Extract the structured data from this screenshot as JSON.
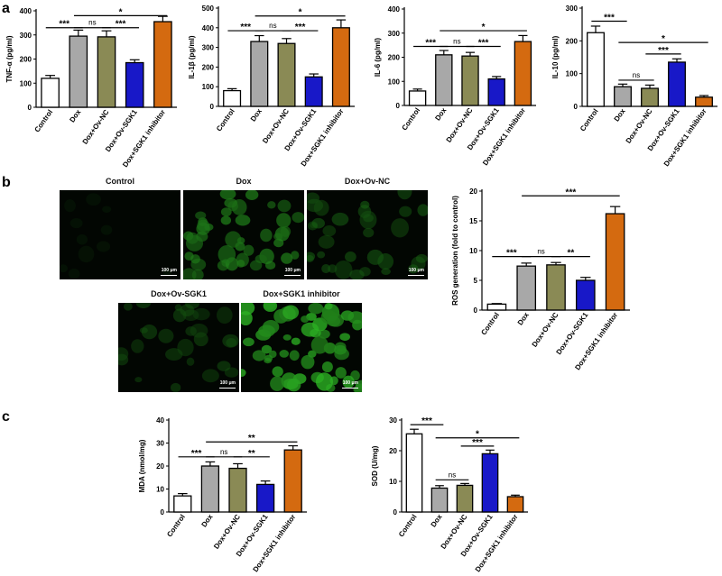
{
  "panels": {
    "a": "a",
    "b": "b",
    "c": "c"
  },
  "colors": {
    "Control": "#ffffff",
    "Dox": "#a8a8a8",
    "Dox+Ov-NC": "#8a8a55",
    "Dox+Ov-SGK1": "#1818c8",
    "Dox+SGK1 inhibitor": "#d46a10"
  },
  "micrographs": {
    "images": [
      {
        "title": "Control",
        "brightness": 0.04
      },
      {
        "title": "Dox",
        "brightness": 0.55
      },
      {
        "title": "Dox+Ov-NC",
        "brightness": 0.35
      },
      {
        "title": "Dox+Ov-SGK1",
        "brightness": 0.28
      },
      {
        "title": "Dox+SGK1 inhibitor",
        "brightness": 0.75
      }
    ],
    "scalebar_label": "100 μm"
  },
  "chart_data": [
    {
      "id": "tnf",
      "type": "bar",
      "title": "",
      "ylabel": "TNF-α (pg/ml)",
      "categories": [
        "Control",
        "Dox",
        "Dox+Ov-NC",
        "Dox+Ov-SGK1",
        "Dox+SGK1 inhibitor"
      ],
      "values": [
        120,
        295,
        292,
        185,
        355
      ],
      "errors": [
        12,
        25,
        25,
        12,
        22
      ],
      "ylim": [
        0,
        400
      ],
      "yticks": [
        0,
        100,
        200,
        300,
        400
      ],
      "annotations": [
        {
          "from": 0,
          "to": 1,
          "y": 330,
          "text": "***"
        },
        {
          "from": 1,
          "to": 2,
          "y": 330,
          "text": "ns"
        },
        {
          "from": 2,
          "to": 3,
          "y": 330,
          "text": "***"
        },
        {
          "from": 1,
          "to": 4,
          "y": 380,
          "text": "*"
        }
      ]
    },
    {
      "id": "il1b",
      "type": "bar",
      "title": "",
      "ylabel": "IL-1β (pg/ml)",
      "categories": [
        "Control",
        "Dox",
        "Dox+Ov-NC",
        "Dox+Ov-SGK1",
        "Dox+SGK1 inhibitor"
      ],
      "values": [
        80,
        330,
        320,
        150,
        400
      ],
      "errors": [
        10,
        30,
        25,
        15,
        40
      ],
      "ylim": [
        0,
        500
      ],
      "yticks": [
        0,
        100,
        200,
        300,
        400,
        500
      ],
      "annotations": [
        {
          "from": 0,
          "to": 1,
          "y": 385,
          "text": "***"
        },
        {
          "from": 1,
          "to": 2,
          "y": 385,
          "text": "ns"
        },
        {
          "from": 2,
          "to": 3,
          "y": 385,
          "text": "***"
        },
        {
          "from": 1,
          "to": 4,
          "y": 460,
          "text": "*"
        }
      ]
    },
    {
      "id": "il6",
      "type": "bar",
      "title": "",
      "ylabel": "IL-6 (pg/ml)",
      "categories": [
        "Control",
        "Dox",
        "Dox+Ov-NC",
        "Dox+Ov-SGK1",
        "Dox+SGK1 inhibitor"
      ],
      "values": [
        60,
        210,
        205,
        110,
        265
      ],
      "errors": [
        8,
        18,
        15,
        10,
        25
      ],
      "ylim": [
        0,
        400
      ],
      "yticks": [
        0,
        100,
        200,
        300,
        400
      ],
      "annotations": [
        {
          "from": 0,
          "to": 1,
          "y": 245,
          "text": "***"
        },
        {
          "from": 1,
          "to": 2,
          "y": 245,
          "text": "ns"
        },
        {
          "from": 2,
          "to": 3,
          "y": 245,
          "text": "***"
        },
        {
          "from": 1,
          "to": 4,
          "y": 310,
          "text": "*"
        }
      ]
    },
    {
      "id": "il10",
      "type": "bar",
      "title": "",
      "ylabel": "IL-10 (pg/ml)",
      "categories": [
        "Control",
        "Dox",
        "Dox+Ov-NC",
        "Dox+Ov-SGK1",
        "Dox+SGK1 inhibitor"
      ],
      "values": [
        225,
        60,
        55,
        135,
        28
      ],
      "errors": [
        20,
        8,
        10,
        10,
        5
      ],
      "ylim": [
        0,
        300
      ],
      "yticks": [
        0,
        100,
        200,
        300
      ],
      "annotations": [
        {
          "from": 0,
          "to": 1,
          "y": 260,
          "text": "***"
        },
        {
          "from": 1,
          "to": 2,
          "y": 80,
          "text": "ns"
        },
        {
          "from": 2,
          "to": 3,
          "y": 160,
          "text": "***"
        },
        {
          "from": 1,
          "to": 4,
          "y": 195,
          "text": "*"
        }
      ]
    },
    {
      "id": "ros",
      "type": "bar",
      "title": "",
      "ylabel": "ROS generation (fold to control)",
      "categories": [
        "Control",
        "Dox",
        "Dox+Ov-NC",
        "Dox+Ov-SGK1",
        "Dox+SGK1 inhibitor"
      ],
      "values": [
        1,
        7.4,
        7.6,
        5.0,
        16.2
      ],
      "errors": [
        0.1,
        0.5,
        0.4,
        0.5,
        1.2
      ],
      "ylim": [
        0,
        20
      ],
      "yticks": [
        0,
        5,
        10,
        15,
        20
      ],
      "annotations": [
        {
          "from": 0,
          "to": 1,
          "y": 9,
          "text": "***"
        },
        {
          "from": 1,
          "to": 2,
          "y": 9,
          "text": "ns"
        },
        {
          "from": 2,
          "to": 3,
          "y": 9,
          "text": "**"
        },
        {
          "from": 1,
          "to": 4,
          "y": 19.2,
          "text": "***"
        }
      ]
    },
    {
      "id": "mda",
      "type": "bar",
      "title": "",
      "ylabel": "MDA (nmol/mg)",
      "categories": [
        "Control",
        "Dox",
        "Dox+Ov-NC",
        "Dox+Ov-SGK1",
        "Dox+SGK1 inhibitor"
      ],
      "values": [
        7,
        20,
        19,
        12,
        27
      ],
      "errors": [
        1,
        1.8,
        2,
        1.5,
        1.8
      ],
      "ylim": [
        0,
        40
      ],
      "yticks": [
        0,
        10,
        20,
        30,
        40
      ],
      "annotations": [
        {
          "from": 0,
          "to": 1,
          "y": 24,
          "text": "***"
        },
        {
          "from": 1,
          "to": 2,
          "y": 24,
          "text": "ns"
        },
        {
          "from": 2,
          "to": 3,
          "y": 24,
          "text": "**"
        },
        {
          "from": 1,
          "to": 4,
          "y": 30.5,
          "text": "**"
        }
      ]
    },
    {
      "id": "sod",
      "type": "bar",
      "title": "",
      "ylabel": "SOD (U/mg)",
      "categories": [
        "Control",
        "Dox",
        "Dox+Ov-NC",
        "Dox+Ov-SGK1",
        "Dox+SGK1 inhibitor"
      ],
      "values": [
        25.5,
        7.8,
        8.7,
        19,
        5
      ],
      "errors": [
        1.5,
        0.8,
        0.6,
        1.2,
        0.5
      ],
      "ylim": [
        0,
        30
      ],
      "yticks": [
        0,
        10,
        20,
        30
      ],
      "annotations": [
        {
          "from": 0,
          "to": 1,
          "y": 28.5,
          "text": "***"
        },
        {
          "from": 1,
          "to": 2,
          "y": 10.5,
          "text": "ns"
        },
        {
          "from": 2,
          "to": 3,
          "y": 21.5,
          "text": "***"
        },
        {
          "from": 1,
          "to": 4,
          "y": 24.2,
          "text": "*"
        }
      ]
    }
  ]
}
